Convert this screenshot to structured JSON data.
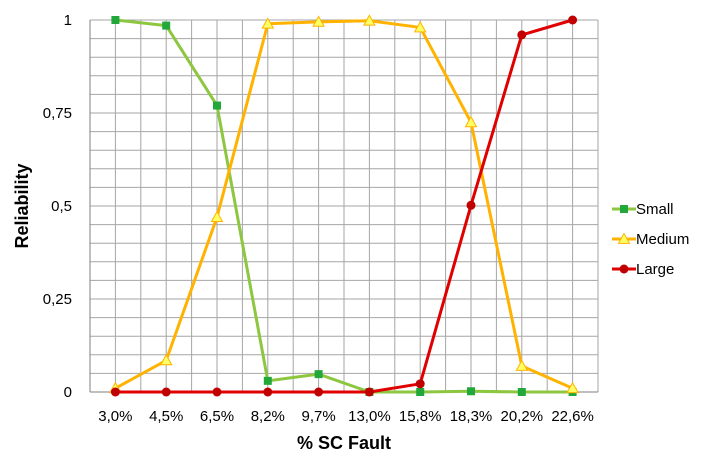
{
  "chart_data": {
    "type": "line",
    "title": "",
    "xlabel": "% SC Fault",
    "ylabel": "Reliability",
    "categories": [
      "3,0%",
      "4,5%",
      "6,5%",
      "8,2%",
      "9,7%",
      "13,0%",
      "15,8%",
      "18,3%",
      "20,2%",
      "22,6%"
    ],
    "yticks": [
      0,
      0.25,
      0.5,
      0.75,
      1
    ],
    "ytick_labels": [
      "0",
      "0,25",
      "0,5",
      "0,75",
      "1"
    ],
    "ylim": [
      0,
      1
    ],
    "grid": true,
    "legend_position": "right",
    "series": [
      {
        "name": "Small",
        "color": "#8DC63F",
        "marker_color": "#22A83A",
        "marker": "square",
        "values": [
          1.0,
          0.985,
          0.77,
          0.03,
          0.048,
          0.0,
          0.0,
          0.002,
          0.0,
          0.0
        ]
      },
      {
        "name": "Medium",
        "color": "#FFB300",
        "marker_color": "#FFFF66",
        "marker": "triangle",
        "values": [
          0.01,
          0.085,
          0.47,
          0.99,
          0.995,
          0.998,
          0.98,
          0.725,
          0.07,
          0.01
        ]
      },
      {
        "name": "Large",
        "color": "#E00000",
        "marker_color": "#C00000",
        "marker": "circle",
        "values": [
          0.0,
          0.0,
          0.0,
          0.0,
          0.0,
          0.0,
          0.022,
          0.502,
          0.96,
          1.0
        ]
      }
    ]
  }
}
